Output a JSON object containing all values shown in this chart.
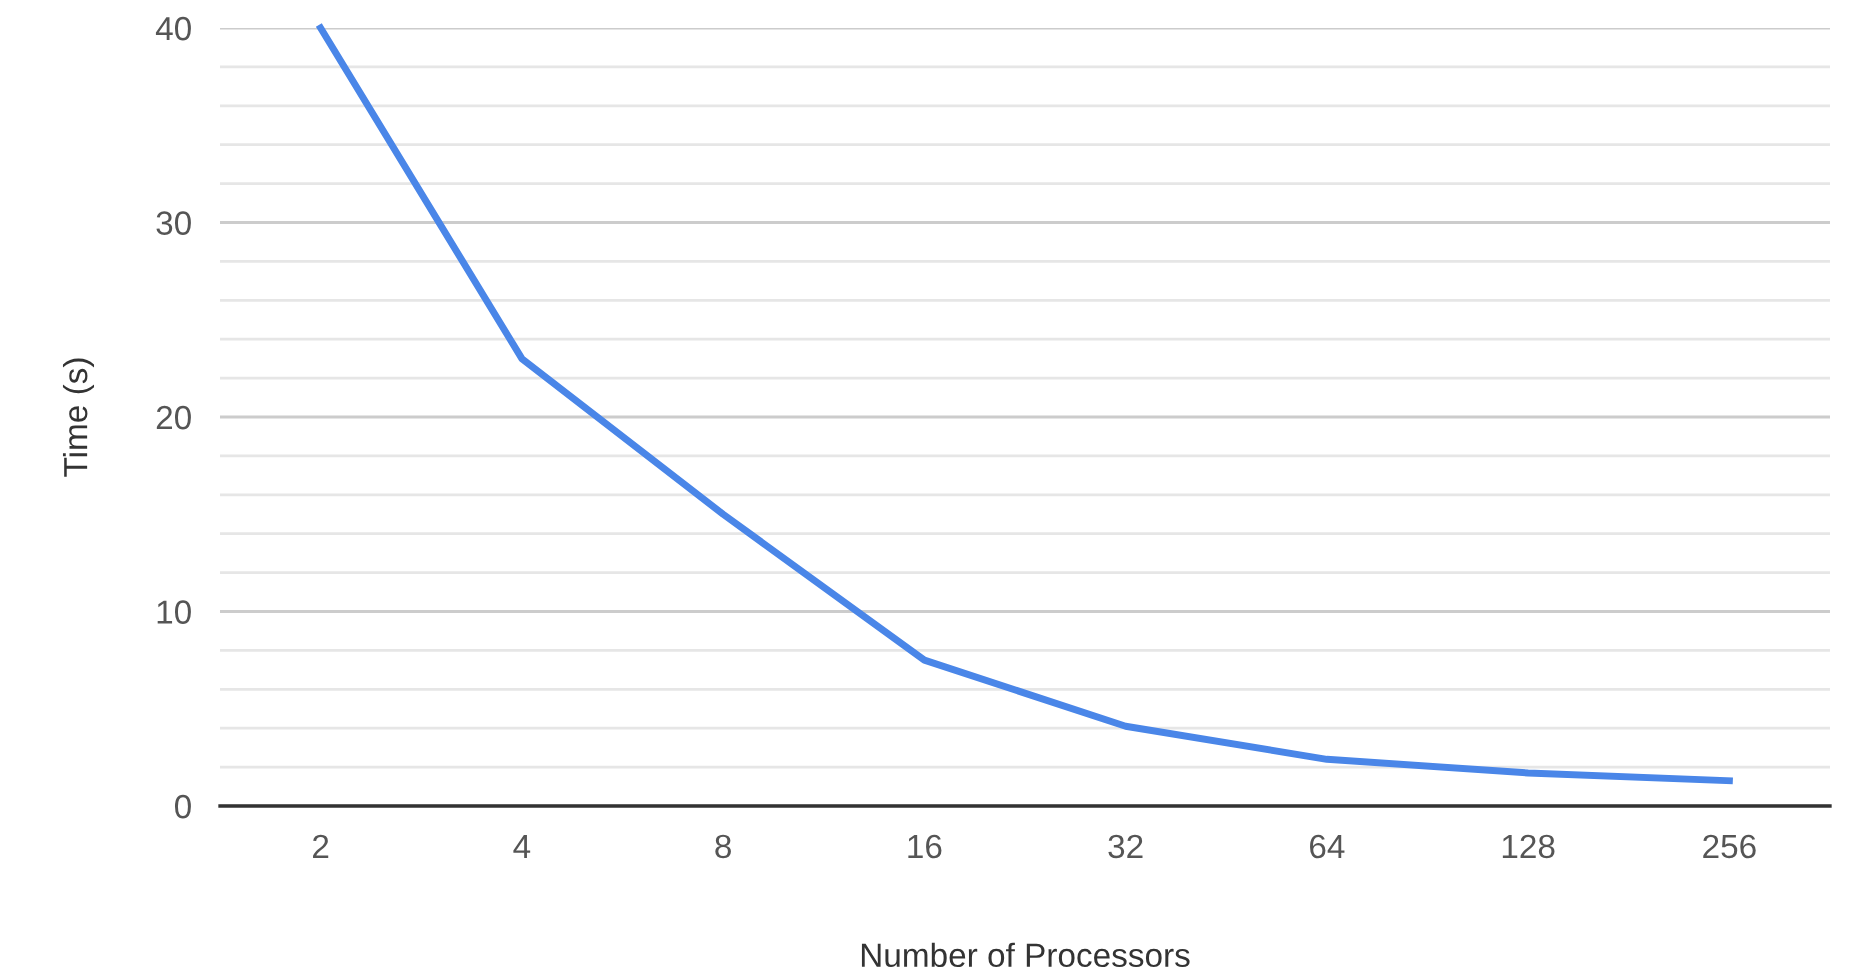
{
  "chart_data": {
    "type": "line",
    "xlabel": "Number of Processors",
    "ylabel": "Time (s)",
    "categories": [
      "2",
      "4",
      "8",
      "16",
      "32",
      "64",
      "128",
      "256"
    ],
    "series": [
      {
        "color": "#4a86e8",
        "values": [
          40,
          23,
          15,
          7.5,
          4.1,
          2.4,
          1.7,
          1.3
        ]
      }
    ],
    "ylim": [
      0,
      40
    ],
    "yticks": [
      0,
      {
        "value": 2,
        "label": null
      },
      {
        "value": 4,
        "label": null
      },
      {
        "value": 6,
        "label": null
      },
      {
        "value": 8,
        "label": null
      },
      10,
      {
        "value": 12,
        "label": null
      },
      {
        "value": 14,
        "label": null
      },
      {
        "value": 16,
        "label": null
      },
      {
        "value": 18,
        "label": null
      },
      20,
      {
        "value": 22,
        "label": null
      },
      {
        "value": 24,
        "label": null
      },
      {
        "value": 26,
        "label": null
      },
      {
        "value": 28,
        "label": null
      },
      30,
      {
        "value": 32,
        "label": null
      },
      {
        "value": 34,
        "label": null
      },
      {
        "value": 36,
        "label": null
      },
      {
        "value": 38,
        "label": null
      },
      40
    ],
    "grid": "y",
    "marker": "none",
    "line_style": "solid"
  }
}
